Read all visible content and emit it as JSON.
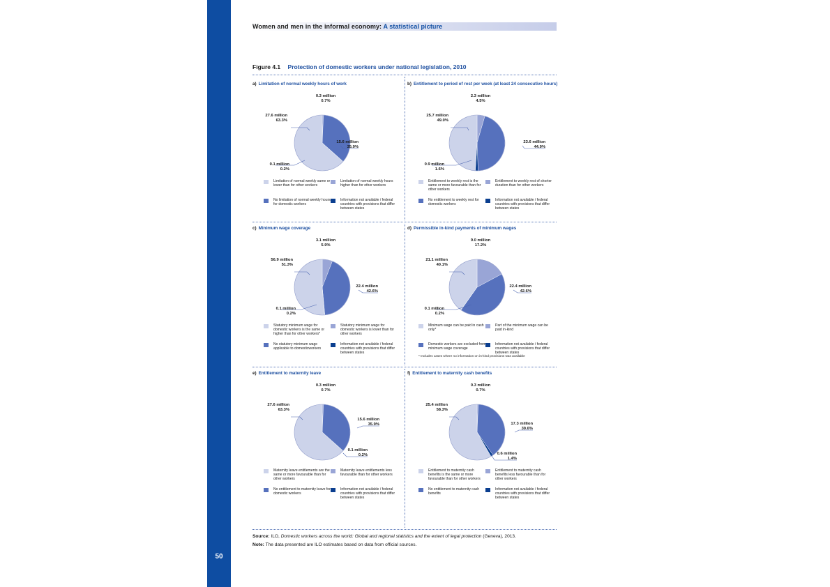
{
  "page": {
    "header_prefix": "Women and men in the informal economy:",
    "header_highlight": "A statistical picture",
    "page_number": "50",
    "figure_number": "Figure 4.1",
    "figure_title": "Protection of domestic workers under national legislation, 2010",
    "source_label": "Source:",
    "source_text_pre": "ILO,",
    "source_italic": "Domestic workers across the world: Global and regional statistics and the extent of legal protection",
    "source_text_post": "(Geneva), 2013.",
    "note_label": "Note:",
    "note_text": "The data presented are ILO estimates based on data from official sources."
  },
  "colors": {
    "light": "#ccd3ea",
    "medium_light": "#99a5d6",
    "medium": "#5671bd",
    "dark": "#0a3e8f",
    "accent": "#0e4da2"
  },
  "chart_data": [
    {
      "type": "pie",
      "letter": "a)",
      "title": "Limitation of normal weekly hours of work",
      "slices": [
        {
          "value": 0.3,
          "pct": 0.7,
          "amount": "0.3 million",
          "percent": "0.7%",
          "color": "medium_light"
        },
        {
          "value": 15.6,
          "pct": 35.9,
          "amount": "15.6 million",
          "percent": "35.9%",
          "color": "medium"
        },
        {
          "value": 0.1,
          "pct": 0.2,
          "amount": "0.1 million",
          "percent": "0.2%",
          "color": "dark"
        },
        {
          "value": 27.6,
          "pct": 63.3,
          "amount": "27.6 million",
          "percent": "63.3%",
          "color": "light"
        }
      ],
      "legend": [
        {
          "color": "light",
          "label": "Limitation of normal weekly same or lower than for other workers"
        },
        {
          "color": "medium_light",
          "label": "Limitation of normal weekly hours higher than for other workers"
        },
        {
          "color": "medium",
          "label": "No limitation of normal weekly hours for domestic workers"
        },
        {
          "color": "dark",
          "label": "Information not available / federal countries with provisions that differ between states"
        }
      ]
    },
    {
      "type": "pie",
      "letter": "b)",
      "title": "Entitlement to period of rest per week (at least 24 consecutive hours)",
      "slices": [
        {
          "value": 2.3,
          "pct": 4.5,
          "amount": "2.3 million",
          "percent": "4.5%",
          "color": "medium_light"
        },
        {
          "value": 23.6,
          "pct": 44.9,
          "amount": "23.6 million",
          "percent": "44.9%",
          "color": "medium"
        },
        {
          "value": 0.9,
          "pct": 1.6,
          "amount": "0.9 million",
          "percent": "1.6%",
          "color": "dark"
        },
        {
          "value": 25.7,
          "pct": 49.0,
          "amount": "25.7 million",
          "percent": "49.0%",
          "color": "light"
        }
      ],
      "legend": [
        {
          "color": "light",
          "label": "Entitlement to weekly rest is the same or more favourable than for other workers"
        },
        {
          "color": "medium_light",
          "label": "Entitlement to weekly rest of shorter duration than for other workers"
        },
        {
          "color": "medium",
          "label": "No entitlement to weekly rest for domestic workers"
        },
        {
          "color": "dark",
          "label": "Information not available / federal countries with provisions that differ between states"
        }
      ]
    },
    {
      "type": "pie",
      "letter": "c)",
      "title": "Minimum wage coverage",
      "slices": [
        {
          "value": 3.1,
          "pct": 5.9,
          "amount": "3.1 million",
          "percent": "5.9%",
          "color": "medium_light"
        },
        {
          "value": 22.4,
          "pct": 42.6,
          "amount": "22.4 million",
          "percent": "42.6%",
          "color": "medium"
        },
        {
          "value": 0.1,
          "pct": 0.2,
          "amount": "0.1 million",
          "percent": "0.2%",
          "color": "dark"
        },
        {
          "value": 56.9,
          "pct": 51.3,
          "amount": "56.9 million",
          "percent": "51.3%",
          "color": "light"
        }
      ],
      "legend": [
        {
          "color": "light",
          "label": "Statutory minimum wage for domestic workers is the same or higher than for other workers*"
        },
        {
          "color": "medium_light",
          "label": "Statutory minimum wage for domestic workers is lower than for other workers"
        },
        {
          "color": "medium",
          "label": "No statutory minimum wage applicable to domesticworkers"
        },
        {
          "color": "dark",
          "label": "Information not available / federal countries with provisions that differ between states"
        }
      ]
    },
    {
      "type": "pie",
      "letter": "d)",
      "title": "Permissible in-kind payments of minimum wages",
      "slices": [
        {
          "value": 9.0,
          "pct": 17.2,
          "amount": "9.0 million",
          "percent": "17.2%",
          "color": "medium_light"
        },
        {
          "value": 22.4,
          "pct": 42.6,
          "amount": "22.4 million",
          "percent": "42.6%",
          "color": "medium"
        },
        {
          "value": 0.1,
          "pct": 0.2,
          "amount": "0.1 million",
          "percent": "0.2%",
          "color": "dark"
        },
        {
          "value": 21.1,
          "pct": 40.1,
          "amount": "21.1 million",
          "percent": "40.1%",
          "color": "light"
        }
      ],
      "legend": [
        {
          "color": "light",
          "label": "Minimum wage can be paid in cash only*"
        },
        {
          "color": "medium_light",
          "label": "Part of the minimum wage can be paid in-kind"
        },
        {
          "color": "medium",
          "label": "Domestic workers are excluded from minimum wage coverage"
        },
        {
          "color": "dark",
          "label": "Information not available / federal countries with provisions that differ between states"
        }
      ],
      "footnote": "* Includes cases where no information on in-kind provisions was available"
    },
    {
      "type": "pie",
      "letter": "e)",
      "title": "Entitlement to maternity leave",
      "slices": [
        {
          "value": 0.3,
          "pct": 0.7,
          "amount": "0.3 million",
          "percent": "0.7%",
          "color": "medium_light"
        },
        {
          "value": 15.6,
          "pct": 35.9,
          "amount": "15.6 million",
          "percent": "35.9%",
          "color": "medium"
        },
        {
          "value": 0.1,
          "pct": 0.2,
          "amount": "0.1 million",
          "percent": "0.2%",
          "color": "dark"
        },
        {
          "value": 27.6,
          "pct": 63.3,
          "amount": "27.6 million",
          "percent": "63.3%",
          "color": "light"
        }
      ],
      "legend": [
        {
          "color": "light",
          "label": "Maternity leave entitlements are the same or more favourable than for other workers"
        },
        {
          "color": "medium_light",
          "label": "Maternity leave entitlements less favourable than for other workers"
        },
        {
          "color": "medium",
          "label": "No entitlement to maternity leave for domestic workers"
        },
        {
          "color": "dark",
          "label": "Information not available / federal countries with provisions that differ between states"
        }
      ]
    },
    {
      "type": "pie",
      "letter": "f)",
      "title": "Entitlement to maternity cash benefits",
      "slices": [
        {
          "value": 0.3,
          "pct": 0.7,
          "amount": "0.3 million",
          "percent": "0.7%",
          "color": "medium_light"
        },
        {
          "value": 17.3,
          "pct": 39.6,
          "amount": "17.3 million",
          "percent": "39.6%",
          "color": "medium"
        },
        {
          "value": 0.6,
          "pct": 1.4,
          "amount": "0.6 million",
          "percent": "1.4%",
          "color": "dark"
        },
        {
          "value": 25.4,
          "pct": 58.3,
          "amount": "25.4 million",
          "percent": "58.3%",
          "color": "light"
        }
      ],
      "legend": [
        {
          "color": "light",
          "label": "Entitlement to maternity cash benefits is the same or more favourable than for other workers"
        },
        {
          "color": "medium_light",
          "label": "Entitlement to maternity cash benefits less favourable than for other workers"
        },
        {
          "color": "medium",
          "label": "No entitlement to maternity cash benefits"
        },
        {
          "color": "dark",
          "label": "Information not available / federal countries with provisions that differ between states"
        }
      ]
    }
  ]
}
